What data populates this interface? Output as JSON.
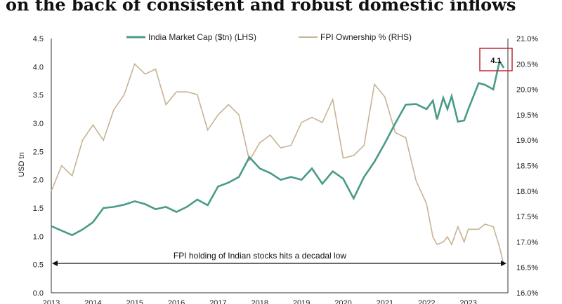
{
  "title": "on the back of consistent and robust domestic inflows",
  "chart_data": {
    "type": "line",
    "ylabel": "USD tn",
    "ylim_left": [
      0,
      4.5
    ],
    "ylim_right": [
      16.0,
      21.0
    ],
    "left_ticks": [
      "0.0",
      "0.5",
      "1.0",
      "1.5",
      "2.0",
      "2.5",
      "3.0",
      "3.5",
      "4.0",
      "4.5"
    ],
    "right_ticks": [
      "16.0%",
      "16.5%",
      "17.0%",
      "17.5%",
      "18.0%",
      "18.5%",
      "19.0%",
      "19.5%",
      "20.0%",
      "20.5%",
      "21.0%"
    ],
    "x_ticks": [
      "2013",
      "2014",
      "2015",
      "2016",
      "2017",
      "2018",
      "2019",
      "2020",
      "2021",
      "2022",
      "2023"
    ],
    "grid": false,
    "legend_position": "top",
    "callout_label": "4.1",
    "annotation": "FPI holding of Indian stocks hits a decadal low",
    "colors": {
      "mcap": "#4a9a8a",
      "fpi": "#c8b394",
      "callout_box": "#c0282f"
    },
    "series": [
      {
        "name": "India Market Cap ($tn) (LHS)",
        "axis": "left",
        "x": [
          2013.0,
          2013.25,
          2013.5,
          2013.75,
          2014.0,
          2014.25,
          2014.5,
          2014.75,
          2015.0,
          2015.25,
          2015.5,
          2015.75,
          2016.0,
          2016.25,
          2016.5,
          2016.75,
          2017.0,
          2017.25,
          2017.5,
          2017.75,
          2018.0,
          2018.25,
          2018.5,
          2018.75,
          2019.0,
          2019.25,
          2019.5,
          2019.75,
          2020.0,
          2020.25,
          2020.5,
          2020.75,
          2021.0,
          2021.25,
          2021.5,
          2021.75,
          2022.0,
          2022.15,
          2022.25,
          2022.4,
          2022.5,
          2022.6,
          2022.75,
          2022.9,
          2023.0,
          2023.25,
          2023.4,
          2023.6,
          2023.75,
          2023.85
        ],
        "values": [
          1.18,
          1.1,
          1.02,
          1.12,
          1.25,
          1.5,
          1.52,
          1.56,
          1.62,
          1.57,
          1.48,
          1.52,
          1.43,
          1.52,
          1.65,
          1.55,
          1.88,
          1.95,
          2.05,
          2.4,
          2.2,
          2.12,
          2.0,
          2.05,
          2.0,
          2.2,
          1.93,
          2.15,
          2.02,
          1.67,
          2.05,
          2.32,
          2.65,
          3.0,
          3.33,
          3.34,
          3.25,
          3.4,
          3.07,
          3.45,
          3.25,
          3.48,
          3.03,
          3.05,
          3.25,
          3.71,
          3.68,
          3.6,
          4.1,
          3.98
        ]
      },
      {
        "name": "FPI Ownership % (RHS)",
        "axis": "right",
        "x": [
          2013.0,
          2013.25,
          2013.5,
          2013.75,
          2014.0,
          2014.25,
          2014.5,
          2014.75,
          2015.0,
          2015.25,
          2015.5,
          2015.75,
          2016.0,
          2016.25,
          2016.5,
          2016.75,
          2017.0,
          2017.25,
          2017.5,
          2017.75,
          2018.0,
          2018.25,
          2018.5,
          2018.75,
          2019.0,
          2019.25,
          2019.5,
          2019.75,
          2020.0,
          2020.25,
          2020.5,
          2020.75,
          2021.0,
          2021.25,
          2021.5,
          2021.75,
          2022.0,
          2022.15,
          2022.25,
          2022.4,
          2022.5,
          2022.6,
          2022.75,
          2022.9,
          2023.0,
          2023.25,
          2023.4,
          2023.6,
          2023.75,
          2023.85
        ],
        "values": [
          18.0,
          18.5,
          18.3,
          19.0,
          19.3,
          19.0,
          19.6,
          19.9,
          20.5,
          20.3,
          20.4,
          19.7,
          19.95,
          19.95,
          19.9,
          19.2,
          19.5,
          19.7,
          19.5,
          18.6,
          18.95,
          19.1,
          18.85,
          18.9,
          19.35,
          19.45,
          19.35,
          19.8,
          18.65,
          18.7,
          18.9,
          20.1,
          19.85,
          19.15,
          19.05,
          18.2,
          17.75,
          17.1,
          16.95,
          17.0,
          17.1,
          16.95,
          17.3,
          17.0,
          17.25,
          17.25,
          17.35,
          17.3,
          16.9,
          16.55
        ]
      }
    ]
  }
}
